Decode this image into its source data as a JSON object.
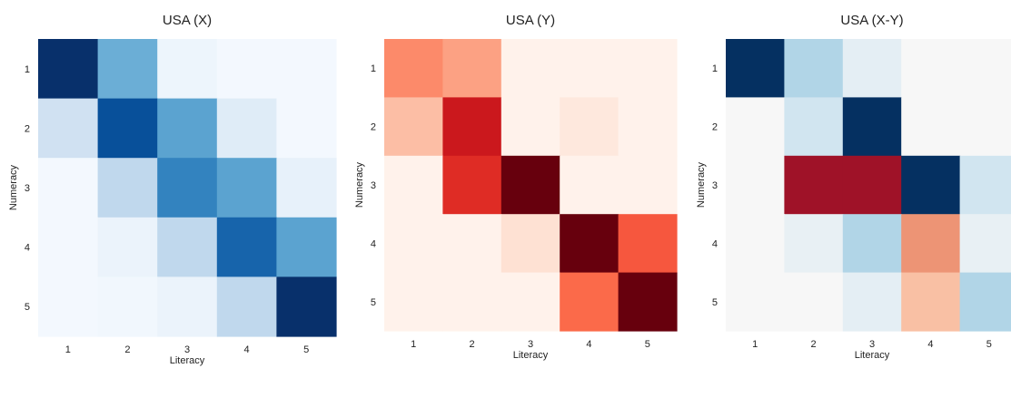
{
  "chart_data": [
    {
      "type": "heatmap",
      "title": "USA (X)",
      "xlabel": "Literacy",
      "ylabel": "Numeracy",
      "x_categories": [
        "1",
        "2",
        "3",
        "4",
        "5"
      ],
      "y_categories": [
        "1",
        "2",
        "3",
        "4",
        "5"
      ],
      "colormap": "Blues",
      "values": [
        [
          1.0,
          0.5,
          0.05,
          0.02,
          0.02
        ],
        [
          0.2,
          0.88,
          0.55,
          0.12,
          0.02
        ],
        [
          0.02,
          0.27,
          0.68,
          0.55,
          0.08
        ],
        [
          0.02,
          0.06,
          0.27,
          0.8,
          0.55
        ],
        [
          0.02,
          0.03,
          0.06,
          0.27,
          1.0
        ]
      ]
    },
    {
      "type": "heatmap",
      "title": "USA (Y)",
      "xlabel": "Literacy",
      "ylabel": "Numeracy",
      "x_categories": [
        "1",
        "2",
        "3",
        "4",
        "5"
      ],
      "y_categories": [
        "1",
        "2",
        "3",
        "4",
        "5"
      ],
      "colormap": "Reds",
      "values": [
        [
          0.4,
          0.33,
          0.02,
          0.02,
          0.02
        ],
        [
          0.24,
          0.75,
          0.02,
          0.08,
          0.02
        ],
        [
          0.02,
          0.68,
          1.0,
          0.02,
          0.02
        ],
        [
          0.02,
          0.02,
          0.12,
          1.0,
          0.55
        ],
        [
          0.02,
          0.02,
          0.02,
          0.5,
          1.0
        ]
      ]
    },
    {
      "type": "heatmap",
      "title": "USA (X-Y)",
      "xlabel": "Literacy",
      "ylabel": "Numeracy",
      "x_categories": [
        "1",
        "2",
        "3",
        "4",
        "5"
      ],
      "y_categories": [
        "1",
        "2",
        "3",
        "4",
        "5"
      ],
      "colormap": "RdBu",
      "values": [
        [
          1.0,
          0.3,
          0.1,
          0.0,
          0.0
        ],
        [
          0.0,
          0.2,
          1.0,
          0.0,
          0.0
        ],
        [
          0.0,
          -0.85,
          -0.85,
          1.0,
          0.2
        ],
        [
          0.0,
          0.08,
          0.3,
          -0.45,
          0.08
        ],
        [
          0.0,
          0.0,
          0.1,
          -0.3,
          0.3
        ]
      ]
    }
  ]
}
